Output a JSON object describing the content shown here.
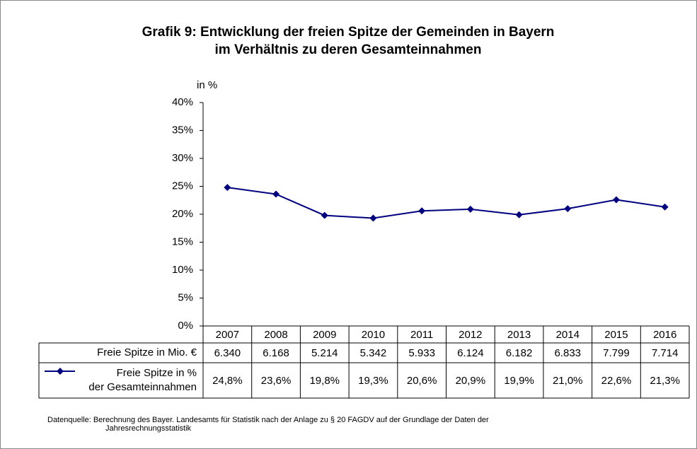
{
  "chart_data": {
    "type": "line",
    "title": [
      "Grafik 9: Entwicklung der freien Spitze der Gemeinden in Bayern",
      "im Verhältnis zu deren Gesamteinnahmen"
    ],
    "y_label": "in %",
    "categories": [
      "2007",
      "2008",
      "2009",
      "2010",
      "2011",
      "2012",
      "2013",
      "2014",
      "2015",
      "2016"
    ],
    "series": [
      {
        "name": "Freie Spitze in Mio. €",
        "values": [
          6340,
          6168,
          5214,
          5342,
          5933,
          6124,
          6182,
          6833,
          7799,
          7714
        ],
        "value_labels": [
          "6.340",
          "6.168",
          "5.214",
          "5.342",
          "5.933",
          "6.124",
          "6.182",
          "6.833",
          "7.799",
          "7.714"
        ],
        "plotted": false
      },
      {
        "name": "Freie Spitze in % der Gesamteinnahmen",
        "color": "#000080",
        "values": [
          24.8,
          23.6,
          19.8,
          19.3,
          20.6,
          20.9,
          19.9,
          21.0,
          22.6,
          21.3
        ],
        "value_labels": [
          "24,8%",
          "23,6%",
          "19,8%",
          "19,3%",
          "20,6%",
          "20,9%",
          "19,9%",
          "21,0%",
          "22,6%",
          "21,3%"
        ],
        "plotted": true
      }
    ],
    "ylim": [
      0,
      40
    ],
    "yticks": [
      {
        "value": 0,
        "label": "0%"
      },
      {
        "value": 5,
        "label": "5%"
      },
      {
        "value": 10,
        "label": "10%"
      },
      {
        "value": 15,
        "label": "15%"
      },
      {
        "value": 20,
        "label": "20%"
      },
      {
        "value": 25,
        "label": "25%"
      },
      {
        "value": 30,
        "label": "30%"
      },
      {
        "value": 35,
        "label": "35%"
      },
      {
        "value": 40,
        "label": "40%"
      }
    ],
    "grid": false,
    "source": [
      "Datenquelle: Berechnung des Bayer. Landesamts für Statistik nach der Anlage zu § 20 FAGDV auf der Grundlage der Daten der",
      "Jahresrechnungsstatistik"
    ]
  }
}
